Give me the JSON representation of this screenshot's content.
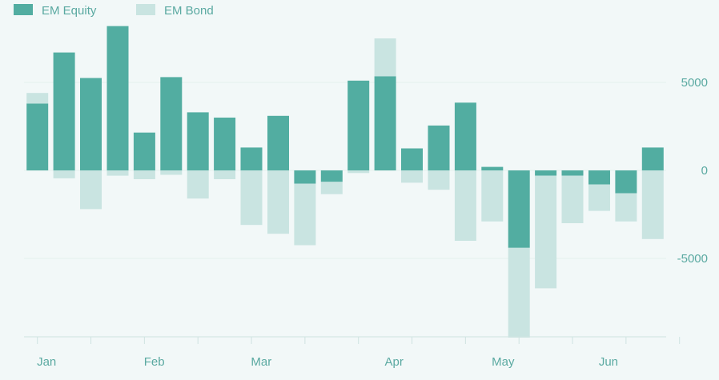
{
  "chart_data": {
    "type": "bar",
    "stacked": true,
    "series": [
      {
        "name": "EM Equity",
        "color": "#52ada1",
        "values": [
          3800,
          6700,
          5250,
          8200,
          2150,
          5300,
          3300,
          3000,
          1300,
          3100,
          -750,
          -650,
          5100,
          5350,
          1250,
          2550,
          3850,
          200,
          -4400,
          -300,
          -300,
          -800,
          -1300,
          1300
        ]
      },
      {
        "name": "EM Bond",
        "color": "#c9e4e1",
        "values": [
          600,
          -450,
          -2200,
          -300,
          -500,
          -250,
          -1600,
          -500,
          -3100,
          -3600,
          -3500,
          -700,
          -150,
          2150,
          -700,
          -1100,
          -4000,
          -2900,
          -5100,
          -6400,
          -2700,
          -1500,
          -1600,
          -3900
        ]
      }
    ],
    "x_ticks": [
      "Jan",
      "Feb",
      "Mar",
      "Apr",
      "May",
      "Jun"
    ],
    "x_tick_index": [
      0.4,
      4.4,
      8.4,
      13.4,
      17.4,
      21.4
    ],
    "y_ticks": [
      "5000",
      "0",
      "-5000"
    ],
    "y_tick_values": [
      5000,
      0,
      -5000
    ],
    "ylim": [
      -9500,
      8300
    ],
    "grid": true,
    "legend_position": "top-left",
    "y_axis_side": "right"
  }
}
